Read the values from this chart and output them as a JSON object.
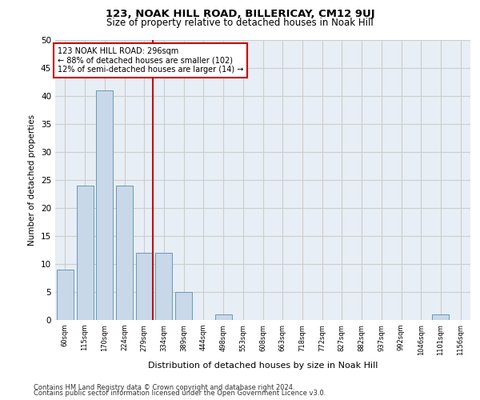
{
  "title": "123, NOAK HILL ROAD, BILLERICAY, CM12 9UJ",
  "subtitle": "Size of property relative to detached houses in Noak Hill",
  "xlabel": "Distribution of detached houses by size in Noak Hill",
  "ylabel": "Number of detached properties",
  "categories": [
    "60sqm",
    "115sqm",
    "170sqm",
    "224sqm",
    "279sqm",
    "334sqm",
    "389sqm",
    "444sqm",
    "498sqm",
    "553sqm",
    "608sqm",
    "663sqm",
    "718sqm",
    "772sqm",
    "827sqm",
    "882sqm",
    "937sqm",
    "992sqm",
    "1046sqm",
    "1101sqm",
    "1156sqm"
  ],
  "values": [
    9,
    24,
    41,
    24,
    12,
    12,
    5,
    0,
    1,
    0,
    0,
    0,
    0,
    0,
    0,
    0,
    0,
    0,
    0,
    1,
    0
  ],
  "bar_color": "#c8d8e8",
  "bar_edge_color": "#6699bb",
  "grid_color": "#cccccc",
  "bg_color": "#e8eef5",
  "vline_color": "#cc0000",
  "annotation_line1": "123 NOAK HILL ROAD: 296sqm",
  "annotation_line2": "← 88% of detached houses are smaller (102)",
  "annotation_line3": "12% of semi-detached houses are larger (14) →",
  "annotation_box_color": "#cc0000",
  "ylim": [
    0,
    50
  ],
  "yticks": [
    0,
    5,
    10,
    15,
    20,
    25,
    30,
    35,
    40,
    45,
    50
  ],
  "footer_line1": "Contains HM Land Registry data © Crown copyright and database right 2024.",
  "footer_line2": "Contains public sector information licensed under the Open Government Licence v3.0."
}
